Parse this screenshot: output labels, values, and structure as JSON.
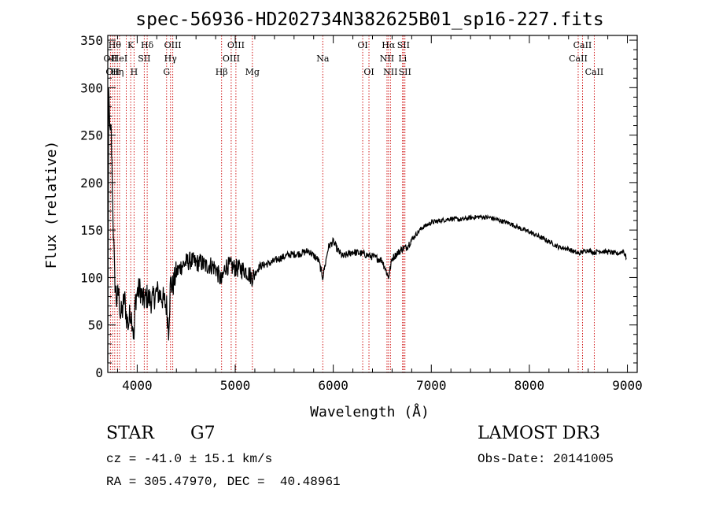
{
  "chart_data": {
    "type": "line",
    "title": "spec-56936-HD202734N382625B01_sp16-227.fits",
    "xlabel": "Wavelength (Å)",
    "ylabel": "Flux (relative)",
    "xlim": [
      3700,
      9100
    ],
    "ylim": [
      0,
      355
    ],
    "xticks": [
      4000,
      5000,
      6000,
      7000,
      8000,
      9000
    ],
    "yticks": [
      0,
      50,
      100,
      150,
      200,
      250,
      300,
      350
    ],
    "series": [
      {
        "name": "spectrum",
        "x": [
          3700,
          3710,
          3720,
          3735,
          3750,
          3770,
          3790,
          3810,
          3830,
          3850,
          3870,
          3890,
          3910,
          3930,
          3950,
          3968,
          3980,
          4000,
          4030,
          4060,
          4100,
          4150,
          4200,
          4250,
          4300,
          4320,
          4340,
          4360,
          4400,
          4450,
          4500,
          4550,
          4600,
          4650,
          4700,
          4750,
          4800,
          4861,
          4900,
          4950,
          5000,
          5100,
          5175,
          5250,
          5350,
          5450,
          5550,
          5650,
          5750,
          5850,
          5893,
          5950,
          6000,
          6050,
          6100,
          6200,
          6300,
          6400,
          6500,
          6563,
          6600,
          6650,
          6700,
          6750,
          6800,
          6900,
          7000,
          7100,
          7200,
          7300,
          7400,
          7500,
          7600,
          7700,
          7800,
          7900,
          8000,
          8100,
          8200,
          8300,
          8400,
          8498,
          8542,
          8600,
          8662,
          8700,
          8800,
          8900,
          8960,
          8990
        ],
        "y": [
          10,
          300,
          260,
          250,
          180,
          100,
          75,
          85,
          60,
          65,
          80,
          58,
          50,
          65,
          55,
          35,
          75,
          85,
          88,
          75,
          80,
          75,
          85,
          80,
          70,
          45,
          95,
          90,
          105,
          112,
          116,
          118,
          115,
          116,
          112,
          113,
          110,
          95,
          112,
          112,
          110,
          108,
          100,
          112,
          115,
          120,
          124,
          125,
          128,
          118,
          100,
          132,
          138,
          128,
          122,
          127,
          125,
          122,
          118,
          100,
          120,
          125,
          130,
          132,
          140,
          152,
          158,
          160,
          162,
          161,
          163,
          164,
          163,
          160,
          157,
          152,
          148,
          143,
          138,
          132,
          130,
          125,
          127,
          129,
          126,
          128,
          127,
          125,
          128,
          120
        ]
      }
    ],
    "lines": [
      {
        "x": 3727,
        "row": 1,
        "label": "OII"
      },
      {
        "x": 3750,
        "row": 2,
        "label": "OII"
      },
      {
        "x": 3771,
        "row": 0,
        "label": "Hθ"
      },
      {
        "x": 3798,
        "row": 2,
        "label": "Hη"
      },
      {
        "x": 3820,
        "row": 1,
        "label": "HeI"
      },
      {
        "x": 3889,
        "row": 1,
        "label": ""
      },
      {
        "x": 3934,
        "row": 0,
        "label": "K"
      },
      {
        "x": 3968,
        "row": 2,
        "label": "H"
      },
      {
        "x": 4072,
        "row": 1,
        "label": "SII"
      },
      {
        "x": 4102,
        "row": 0,
        "label": "Hδ"
      },
      {
        "x": 4300,
        "row": 2,
        "label": "G"
      },
      {
        "x": 4340,
        "row": 1,
        "label": "Hγ"
      },
      {
        "x": 4363,
        "row": 0,
        "label": "OIII"
      },
      {
        "x": 4861,
        "row": 2,
        "label": "Hβ"
      },
      {
        "x": 4959,
        "row": 1,
        "label": "OIII"
      },
      {
        "x": 5007,
        "row": 0,
        "label": "OIII"
      },
      {
        "x": 5175,
        "row": 2,
        "label": "Mg"
      },
      {
        "x": 5893,
        "row": 1,
        "label": "Na"
      },
      {
        "x": 6300,
        "row": 0,
        "label": "OI"
      },
      {
        "x": 6364,
        "row": 2,
        "label": "OI"
      },
      {
        "x": 6548,
        "row": 1,
        "label": "NII"
      },
      {
        "x": 6563,
        "row": 0,
        "label": "Hα"
      },
      {
        "x": 6583,
        "row": 2,
        "label": "NII"
      },
      {
        "x": 6707,
        "row": 1,
        "label": "Li"
      },
      {
        "x": 6716,
        "row": 0,
        "label": "SII"
      },
      {
        "x": 6731,
        "row": 2,
        "label": "SII"
      },
      {
        "x": 8498,
        "row": 1,
        "label": "CaII"
      },
      {
        "x": 8542,
        "row": 0,
        "label": "CaII"
      },
      {
        "x": 8662,
        "row": 2,
        "label": "CaII"
      }
    ]
  },
  "info": {
    "class_label": "STAR",
    "subclass": "G7",
    "survey": "LAMOST DR3",
    "cz": "cz = -41.0 ± 15.1 km/s",
    "obs_date": "Obs-Date: 20141005",
    "coords": "RA = 305.47970, DEC =  40.48961"
  }
}
